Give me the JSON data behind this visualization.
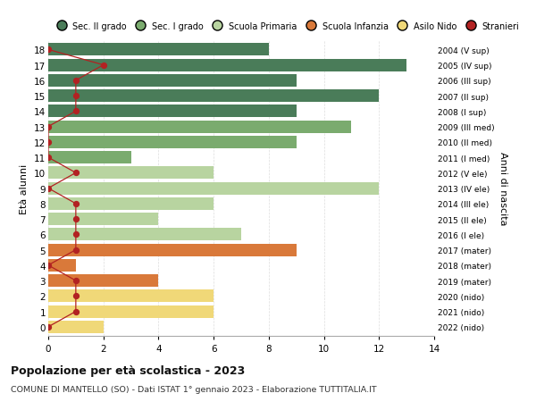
{
  "ages": [
    18,
    17,
    16,
    15,
    14,
    13,
    12,
    11,
    10,
    9,
    8,
    7,
    6,
    5,
    4,
    3,
    2,
    1,
    0
  ],
  "right_labels": [
    "2004 (V sup)",
    "2005 (IV sup)",
    "2006 (III sup)",
    "2007 (II sup)",
    "2008 (I sup)",
    "2009 (III med)",
    "2010 (II med)",
    "2011 (I med)",
    "2012 (V ele)",
    "2013 (IV ele)",
    "2014 (III ele)",
    "2015 (II ele)",
    "2016 (I ele)",
    "2017 (mater)",
    "2018 (mater)",
    "2019 (mater)",
    "2020 (nido)",
    "2021 (nido)",
    "2022 (nido)"
  ],
  "bar_values": [
    8,
    13,
    9,
    12,
    9,
    11,
    9,
    3,
    6,
    12,
    6,
    4,
    7,
    9,
    1,
    4,
    6,
    6,
    2
  ],
  "bar_colors": [
    "#4a7c59",
    "#4a7c59",
    "#4a7c59",
    "#4a7c59",
    "#4a7c59",
    "#7aab6e",
    "#7aab6e",
    "#7aab6e",
    "#b8d4a0",
    "#b8d4a0",
    "#b8d4a0",
    "#b8d4a0",
    "#b8d4a0",
    "#d9793a",
    "#d9793a",
    "#d9793a",
    "#f0d878",
    "#f0d878",
    "#f0d878"
  ],
  "stranieri_values": [
    0,
    2,
    1,
    1,
    1,
    0,
    0,
    0,
    1,
    0,
    1,
    1,
    1,
    1,
    0,
    1,
    1,
    1,
    0
  ],
  "stranieri_color": "#b22222",
  "title_bold": "Popolazione per età scolastica - 2023",
  "subtitle": "COMUNE DI MANTELLO (SO) - Dati ISTAT 1° gennaio 2023 - Elaborazione TUTTITALIA.IT",
  "ylabel_left": "Età alunni",
  "ylabel_right": "Anni di nascita",
  "xlim": [
    0,
    14
  ],
  "xticks": [
    0,
    2,
    4,
    6,
    8,
    10,
    12,
    14
  ],
  "legend_labels": [
    "Sec. II grado",
    "Sec. I grado",
    "Scuola Primaria",
    "Scuola Infanzia",
    "Asilo Nido",
    "Stranieri"
  ],
  "legend_colors": [
    "#4a7c59",
    "#7aab6e",
    "#b8d4a0",
    "#d9793a",
    "#f0d878",
    "#b22222"
  ],
  "bg_color": "#ffffff",
  "grid_color": "#dddddd"
}
